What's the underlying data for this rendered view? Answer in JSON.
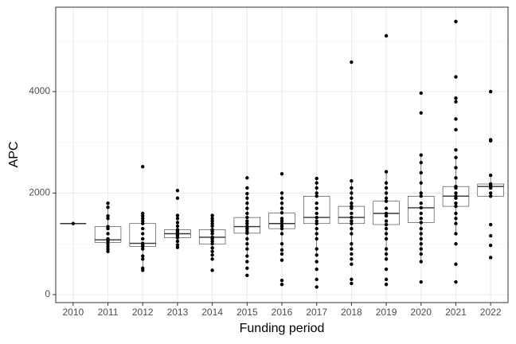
{
  "chart_data": {
    "type": "box",
    "x_label": "Funding period",
    "y_label": "APC",
    "categories": [
      "2010",
      "2011",
      "2012",
      "2013",
      "2014",
      "2015",
      "2016",
      "2017",
      "2018",
      "2019",
      "2020",
      "2021",
      "2022"
    ],
    "ylim": [
      -157,
      5663
    ],
    "yticks": [
      0,
      2000,
      4000
    ],
    "minor_grid": [
      1000,
      3000,
      5000
    ],
    "grid": true,
    "box_fill": "#ffffff",
    "box_stroke": "#333333",
    "point_color": "#000000",
    "boxes": [
      {
        "low": 1400,
        "q1": 1400,
        "median": 1400,
        "q3": 1400,
        "high": 1400,
        "points": [
          1400
        ]
      },
      {
        "low": 850,
        "q1": 1030,
        "median": 1080,
        "q3": 1340,
        "high": 1800,
        "points": [
          850,
          900,
          950,
          1000,
          1050,
          1080,
          1100,
          1200,
          1300,
          1340,
          1500,
          1550,
          1720,
          1800
        ]
      },
      {
        "low": 480,
        "q1": 950,
        "median": 1010,
        "q3": 1400,
        "high": 1600,
        "points": [
          480,
          520,
          700,
          760,
          900,
          950,
          980,
          1010,
          1100,
          1200,
          1300,
          1400,
          1450,
          1500,
          1550,
          1600,
          2520
        ]
      },
      {
        "low": 930,
        "q1": 1120,
        "median": 1200,
        "q3": 1280,
        "high": 1560,
        "points": [
          930,
          980,
          1050,
          1120,
          1150,
          1180,
          1200,
          1220,
          1250,
          1280,
          1350,
          1420,
          1500,
          1560,
          1900,
          2050
        ]
      },
      {
        "low": 700,
        "q1": 1000,
        "median": 1130,
        "q3": 1280,
        "high": 1560,
        "points": [
          480,
          700,
          780,
          850,
          920,
          1000,
          1050,
          1100,
          1130,
          1200,
          1250,
          1280,
          1350,
          1400,
          1450,
          1500,
          1560
        ]
      },
      {
        "low": 760,
        "q1": 1210,
        "median": 1340,
        "q3": 1520,
        "high": 1990,
        "points": [
          380,
          520,
          650,
          760,
          900,
          1000,
          1100,
          1210,
          1250,
          1300,
          1340,
          1400,
          1450,
          1520,
          1600,
          1700,
          1800,
          1900,
          1990,
          2100,
          2300
        ]
      },
      {
        "low": 880,
        "q1": 1300,
        "median": 1400,
        "q3": 1610,
        "high": 2000,
        "points": [
          200,
          280,
          680,
          800,
          880,
          1000,
          1200,
          1300,
          1350,
          1400,
          1450,
          1500,
          1610,
          1700,
          1800,
          1900,
          2000,
          2380
        ]
      },
      {
        "low": 780,
        "q1": 1400,
        "median": 1520,
        "q3": 1940,
        "high": 2290,
        "points": [
          150,
          300,
          500,
          650,
          780,
          900,
          1100,
          1200,
          1300,
          1400,
          1450,
          1520,
          1600,
          1700,
          1800,
          1940,
          2000,
          2100,
          2200,
          2290
        ]
      },
      {
        "low": 900,
        "q1": 1400,
        "median": 1520,
        "q3": 1740,
        "high": 2240,
        "points": [
          220,
          300,
          600,
          700,
          800,
          900,
          1000,
          1200,
          1300,
          1400,
          1450,
          1520,
          1600,
          1700,
          1740,
          1800,
          1900,
          2000,
          2100,
          2240,
          4580
        ]
      },
      {
        "low": 700,
        "q1": 1380,
        "median": 1600,
        "q3": 1840,
        "high": 2420,
        "points": [
          200,
          300,
          500,
          700,
          800,
          900,
          1100,
          1200,
          1300,
          1380,
          1450,
          1550,
          1600,
          1700,
          1840,
          1900,
          2000,
          2100,
          2200,
          2420,
          5100
        ]
      },
      {
        "low": 650,
        "q1": 1420,
        "median": 1710,
        "q3": 1940,
        "high": 2750,
        "points": [
          250,
          650,
          800,
          900,
          1000,
          1100,
          1200,
          1300,
          1420,
          1500,
          1600,
          1710,
          1800,
          1940,
          2000,
          2200,
          2400,
          2600,
          2750,
          3580,
          3970
        ]
      },
      {
        "low": 1200,
        "q1": 1740,
        "median": 1940,
        "q3": 2130,
        "high": 2700,
        "points": [
          250,
          600,
          1000,
          1200,
          1400,
          1500,
          1600,
          1740,
          1800,
          1900,
          1940,
          2000,
          2100,
          2130,
          2300,
          2500,
          2700,
          2850,
          3250,
          3460,
          3800,
          3870,
          4290,
          5380
        ]
      },
      {
        "low": 1900,
        "q1": 1940,
        "median": 2130,
        "q3": 2180,
        "high": 2350,
        "points": [
          730,
          970,
          1160,
          1380,
          1940,
          2000,
          2100,
          2130,
          2150,
          2180,
          2350,
          3030,
          3050,
          4000
        ]
      }
    ]
  }
}
